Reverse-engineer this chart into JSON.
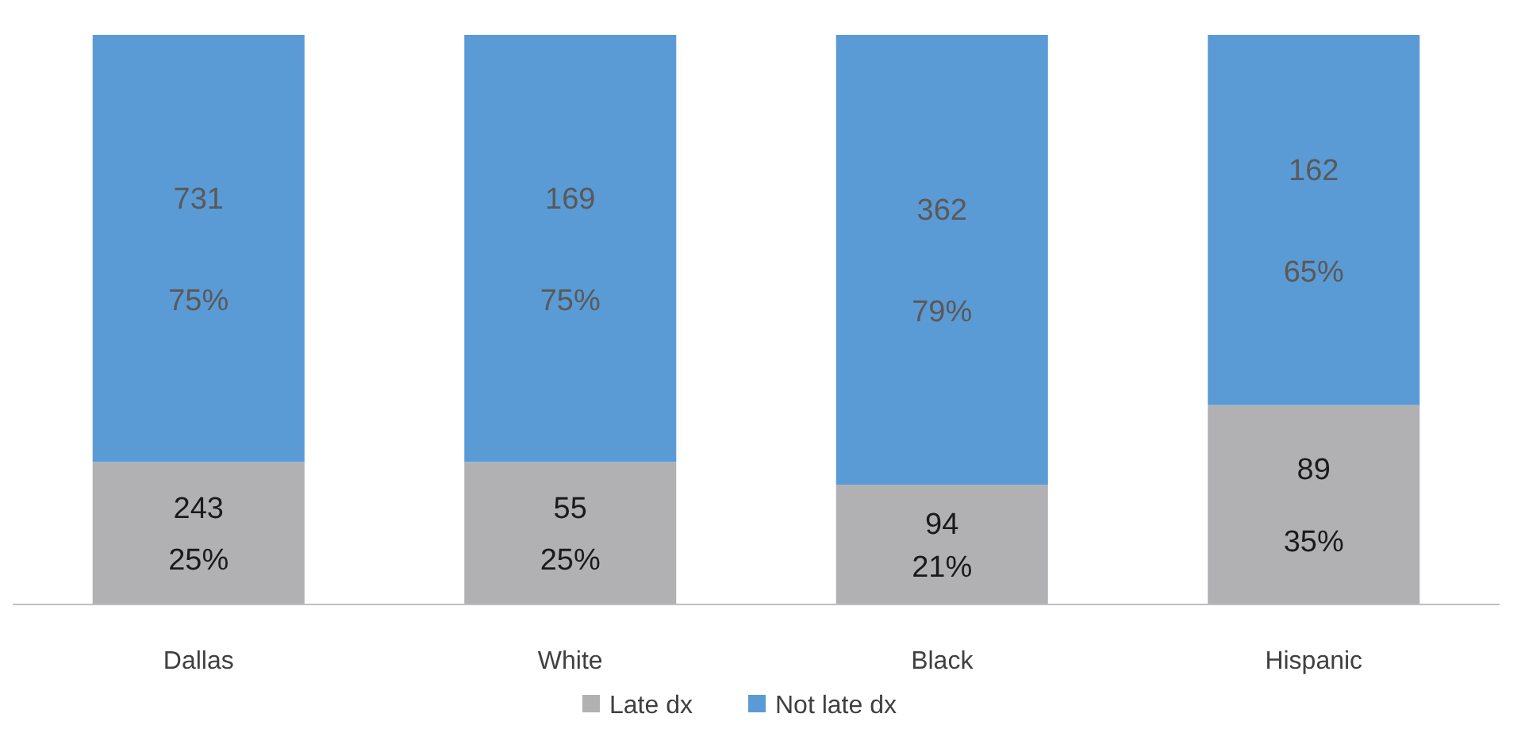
{
  "chart_data": {
    "type": "bar",
    "stacked": true,
    "categories": [
      "Dallas",
      "White",
      "Black",
      "Hispanic"
    ],
    "series": [
      {
        "name": "Late dx",
        "color": "#b1b1b4",
        "values": [
          25,
          25,
          21,
          35
        ],
        "value_labels": [
          "243\n25%",
          "55\n25%",
          "94\n21%",
          "89\n35%"
        ]
      },
      {
        "name": "Not late dx",
        "color": "#5b9bd5",
        "values": [
          75,
          75,
          79,
          65
        ],
        "value_labels": [
          "731\n75%",
          "169\n75%",
          "362\n79%",
          "162\n65%"
        ]
      }
    ],
    "legend": "bottom"
  }
}
